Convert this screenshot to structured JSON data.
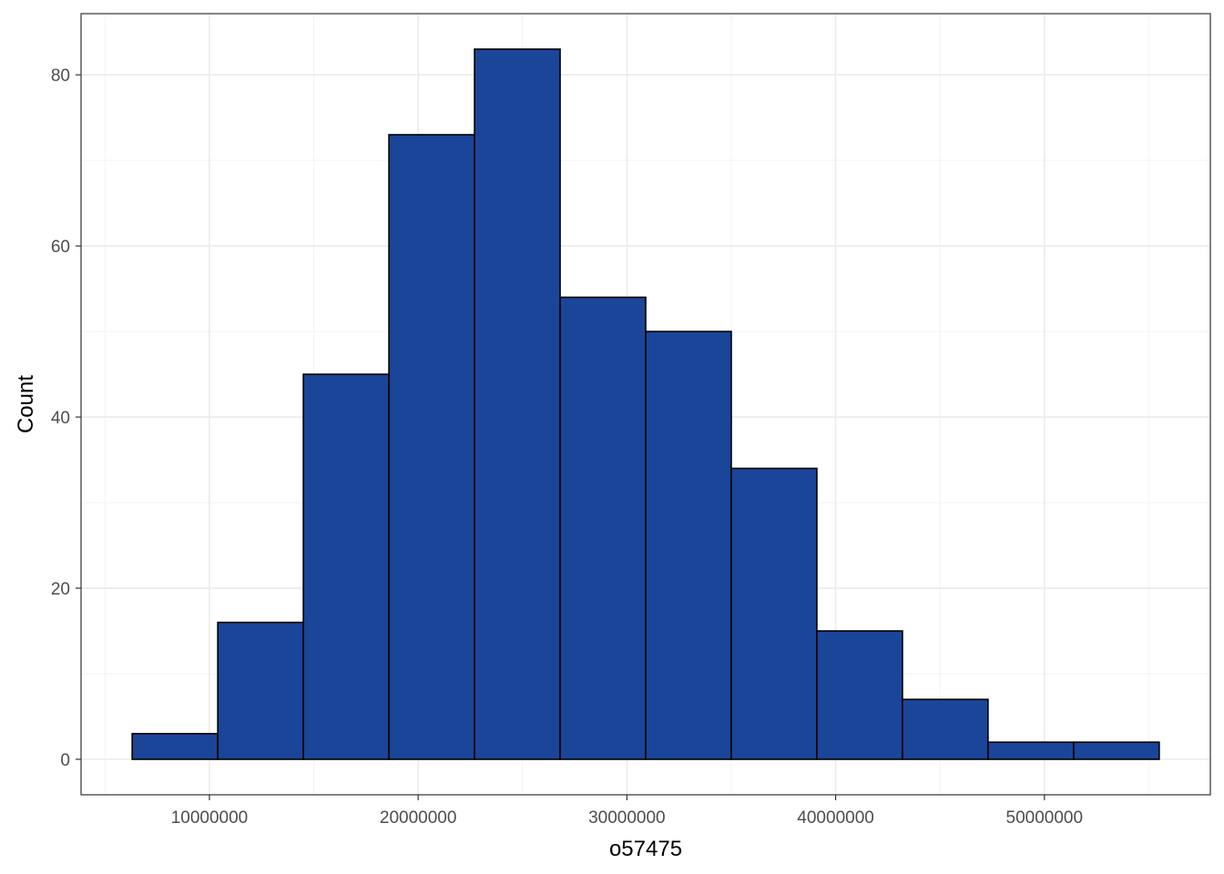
{
  "chart_data": {
    "type": "bar",
    "subtype": "histogram",
    "xlabel": "o57475",
    "ylabel": "Count",
    "xlim": [
      3850000,
      57950000
    ],
    "ylim": [
      -4.15,
      87.15
    ],
    "x_ticks": [
      10000000,
      20000000,
      30000000,
      40000000,
      50000000
    ],
    "x_tick_labels": [
      "10000000",
      "20000000",
      "30000000",
      "40000000",
      "50000000"
    ],
    "y_ticks": [
      0,
      20,
      40,
      60,
      80
    ],
    "y_tick_labels": [
      "0",
      "20",
      "40",
      "60",
      "80"
    ],
    "bin_edges": [
      6300000,
      10400000,
      14500000,
      18600000,
      22700000,
      26800000,
      30900000,
      35000000,
      39100000,
      43200000,
      47300000,
      51400000,
      55500000
    ],
    "values": [
      3,
      16,
      45,
      73,
      83,
      54,
      50,
      34,
      15,
      7,
      2,
      2
    ],
    "grid": true,
    "legend": "none",
    "colors": {
      "bar_fill": "#1A4599",
      "bar_stroke": "#000000",
      "grid_major": "#EBEBEB",
      "grid_minor": "#F3F3F3",
      "panel_border": "#333333"
    }
  }
}
